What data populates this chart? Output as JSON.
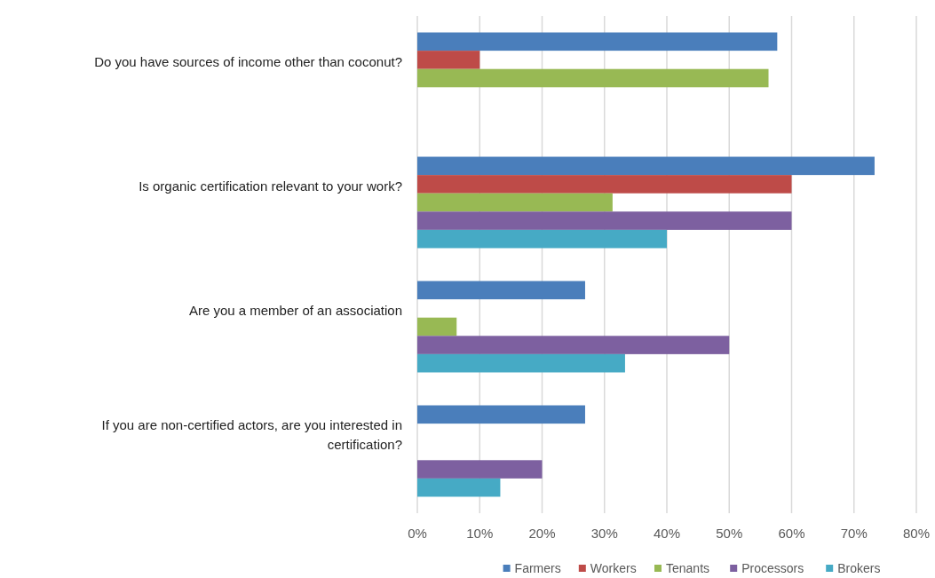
{
  "chart_data": {
    "type": "bar",
    "orientation": "horizontal",
    "categories": [
      "Do you have sources of income other than coconut?",
      "Is organic certification relevant to your work?",
      "Are you a member of an association",
      "If you are non-certified actors, are you interested in certification?"
    ],
    "series": [
      {
        "name": "Farmers",
        "color": "#4a7ebb",
        "values": [
          57.7,
          73.3,
          26.9,
          26.9
        ]
      },
      {
        "name": "Workers",
        "color": "#be4b48",
        "values": [
          10,
          60,
          null,
          null
        ]
      },
      {
        "name": "Tenants",
        "color": "#98b954",
        "values": [
          56.3,
          31.3,
          6.3,
          null
        ]
      },
      {
        "name": "Processors",
        "color": "#7d60a0",
        "values": [
          null,
          60,
          50,
          20
        ]
      },
      {
        "name": "Brokers",
        "color": "#46aac5",
        "values": [
          null,
          40,
          33.3,
          13.3
        ]
      }
    ],
    "xlim": [
      0,
      80
    ],
    "xticks": [
      {
        "value": 0,
        "label": "0%"
      },
      {
        "value": 10,
        "label": "10%"
      },
      {
        "value": 20,
        "label": "20%"
      },
      {
        "value": 30,
        "label": "30%"
      },
      {
        "value": 40,
        "label": "40%"
      },
      {
        "value": 50,
        "label": "50%"
      },
      {
        "value": 60,
        "label": "60%"
      },
      {
        "value": 70,
        "label": "70%"
      },
      {
        "value": 80,
        "label": "80%"
      }
    ],
    "grid": "x",
    "legend": "bottom"
  }
}
